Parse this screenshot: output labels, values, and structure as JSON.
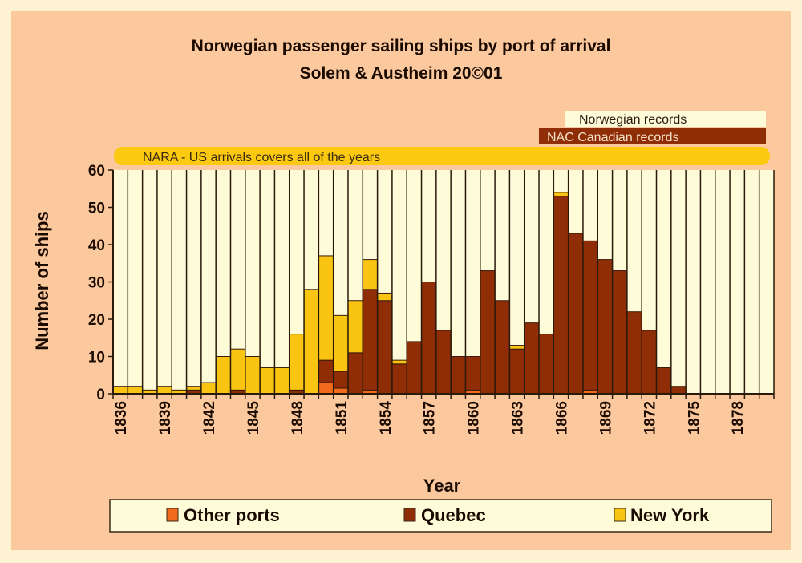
{
  "chart_data": {
    "type": "bar",
    "stacked": true,
    "title": "Norwegian passenger sailing ships by port of arrival",
    "subtitle": "Solem & Austheim 20©01",
    "xlabel": "Year",
    "ylabel": "Number of ships",
    "ylim": [
      0,
      60
    ],
    "yticks": [
      "0",
      "10",
      "20",
      "30",
      "40",
      "50",
      "60"
    ],
    "ytick_values": [
      0,
      10,
      20,
      30,
      40,
      50,
      60
    ],
    "categories": [
      1836,
      1837,
      1838,
      1839,
      1840,
      1841,
      1842,
      1843,
      1844,
      1845,
      1846,
      1847,
      1848,
      1849,
      1850,
      1851,
      1852,
      1853,
      1854,
      1855,
      1856,
      1857,
      1858,
      1859,
      1860,
      1861,
      1862,
      1863,
      1864,
      1865,
      1866,
      1867,
      1868,
      1869,
      1870,
      1871,
      1872,
      1873,
      1874,
      1875,
      1876,
      1877,
      1878,
      1879,
      1880
    ],
    "xtick_labels": [
      "1836",
      "1839",
      "1842",
      "1845",
      "1848",
      "1851",
      "1854",
      "1857",
      "1860",
      "1863",
      "1866",
      "1869",
      "1872",
      "1875",
      "1878"
    ],
    "series": [
      {
        "name": "Other ports",
        "color": "#f26a1b",
        "values": [
          0,
          0,
          0,
          0,
          0,
          0,
          0,
          0,
          0,
          0,
          0,
          0,
          0,
          0,
          3,
          1.5,
          0,
          1,
          0,
          0,
          0,
          0,
          0,
          0,
          1,
          0,
          0,
          0,
          0,
          0,
          0,
          0,
          1,
          0,
          0,
          0,
          0,
          0,
          0,
          0,
          0,
          0,
          0,
          0,
          0
        ]
      },
      {
        "name": "Quebec",
        "color": "#8f2d07",
        "values": [
          0,
          0,
          0,
          0,
          0,
          1,
          0,
          0,
          1,
          0,
          0,
          0,
          1,
          0,
          6,
          4.5,
          11,
          27,
          25,
          8,
          14,
          30,
          17,
          10,
          9,
          33,
          25,
          12,
          19,
          16,
          53,
          43,
          40,
          36,
          33,
          22,
          17,
          7,
          2,
          0,
          0,
          0,
          0,
          0,
          0
        ]
      },
      {
        "name": "New York",
        "color": "#f9c512",
        "values": [
          2,
          2,
          1,
          2,
          1,
          1,
          3,
          10,
          11,
          10,
          7,
          7,
          15,
          28,
          28,
          15,
          14,
          8,
          2,
          1,
          0,
          0,
          0,
          0,
          0,
          0,
          0,
          1,
          0,
          0,
          1,
          0,
          0,
          0,
          0,
          0,
          0,
          0,
          0,
          0,
          0,
          0,
          0,
          0,
          0
        ]
      }
    ],
    "annotations": {
      "norwegian": "Norwegian records",
      "nac": "NAC Canadian records",
      "nara": "NARA - US arrivals covers all of the years"
    },
    "legend_position": "bottom",
    "grid": false,
    "colors": {
      "plot_bg": "#fefbd9",
      "panel": "#fcc99e",
      "frame": "#fdf3d2",
      "nara_band": "#fbc910"
    }
  }
}
